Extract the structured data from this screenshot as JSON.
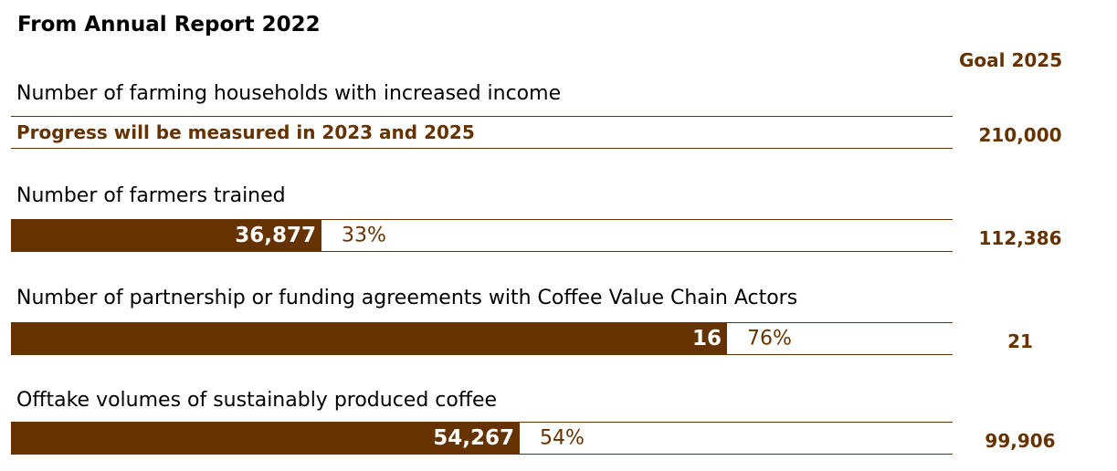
{
  "chart_data": {
    "type": "bar",
    "title": "From Annual Report 2022",
    "goal_header": "Goal 2025",
    "colors": {
      "bar": "#663300",
      "accent_text": "#663300"
    },
    "rows": [
      {
        "label": "Number of farming households with increased income",
        "value": null,
        "percent": null,
        "note": "Progress will be measured in 2023 and 2025",
        "goal": "210,000"
      },
      {
        "label": "Number of farmers trained",
        "value": 36877,
        "value_label": "36,877",
        "percent": 33,
        "percent_label": "33%",
        "goal": "112,386"
      },
      {
        "label": "Number of partnership or funding agreements with Coffee Value Chain Actors",
        "value": 16,
        "value_label": "16",
        "percent": 76,
        "percent_label": "76%",
        "goal": "21"
      },
      {
        "label": "Offtake volumes of sustainably produced coffee",
        "value": 54267,
        "value_label": "54,267",
        "percent": 54,
        "percent_label": "54%",
        "goal": "99,906"
      }
    ]
  }
}
